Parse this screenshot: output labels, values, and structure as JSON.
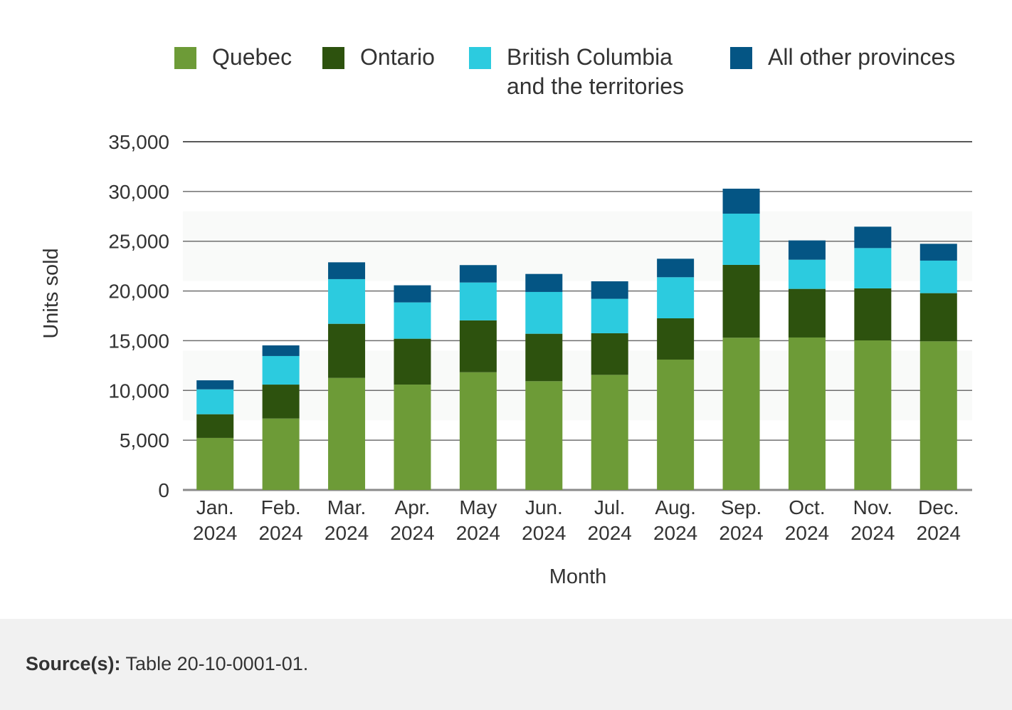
{
  "chart_data": {
    "type": "bar",
    "stacked": true,
    "title": "",
    "xlabel": "Month",
    "ylabel": "Units sold",
    "ylim": [
      0,
      35000
    ],
    "yticks": [
      0,
      5000,
      10000,
      15000,
      20000,
      25000,
      30000,
      35000
    ],
    "ytick_labels": [
      "0",
      "5,000",
      "10,000",
      "15,000",
      "20,000",
      "25,000",
      "30,000",
      "35,000"
    ],
    "grid": true,
    "legend_position": "top",
    "categories": [
      [
        "Jan.",
        "2024"
      ],
      [
        "Feb.",
        "2024"
      ],
      [
        "Mar.",
        "2024"
      ],
      [
        "Apr.",
        "2024"
      ],
      [
        "May",
        "2024"
      ],
      [
        "Jun.",
        "2024"
      ],
      [
        "Jul.",
        "2024"
      ],
      [
        "Aug.",
        "2024"
      ],
      [
        "Sep.",
        "2024"
      ],
      [
        "Oct.",
        "2024"
      ],
      [
        "Nov.",
        "2024"
      ],
      [
        "Dec.",
        "2024"
      ]
    ],
    "series": [
      {
        "name": "Quebec",
        "color": "#6d9b37",
        "values": [
          5230,
          7180,
          11260,
          10590,
          11830,
          10930,
          11570,
          13100,
          15300,
          15320,
          15030,
          14940
        ]
      },
      {
        "name": "Ontario",
        "color": "#2d520e",
        "values": [
          2380,
          3410,
          5440,
          4610,
          5210,
          4770,
          4180,
          4150,
          7320,
          4890,
          5230,
          4840
        ]
      },
      {
        "name": "British Columbia and the territories",
        "label_lines": [
          "British Columbia",
          "and the territories"
        ],
        "color": "#2ccbdf",
        "values": [
          2500,
          2870,
          4490,
          3650,
          3810,
          4200,
          3460,
          4130,
          5150,
          2930,
          4050,
          3270
        ]
      },
      {
        "name": "All other provinces",
        "color": "#045584",
        "values": [
          910,
          1070,
          1690,
          1720,
          1750,
          1810,
          1760,
          1860,
          2510,
          1940,
          2150,
          1690
        ]
      }
    ]
  },
  "footer": {
    "source_label": "Source(s):",
    "source_text": " Table 20-10-0001-01."
  }
}
